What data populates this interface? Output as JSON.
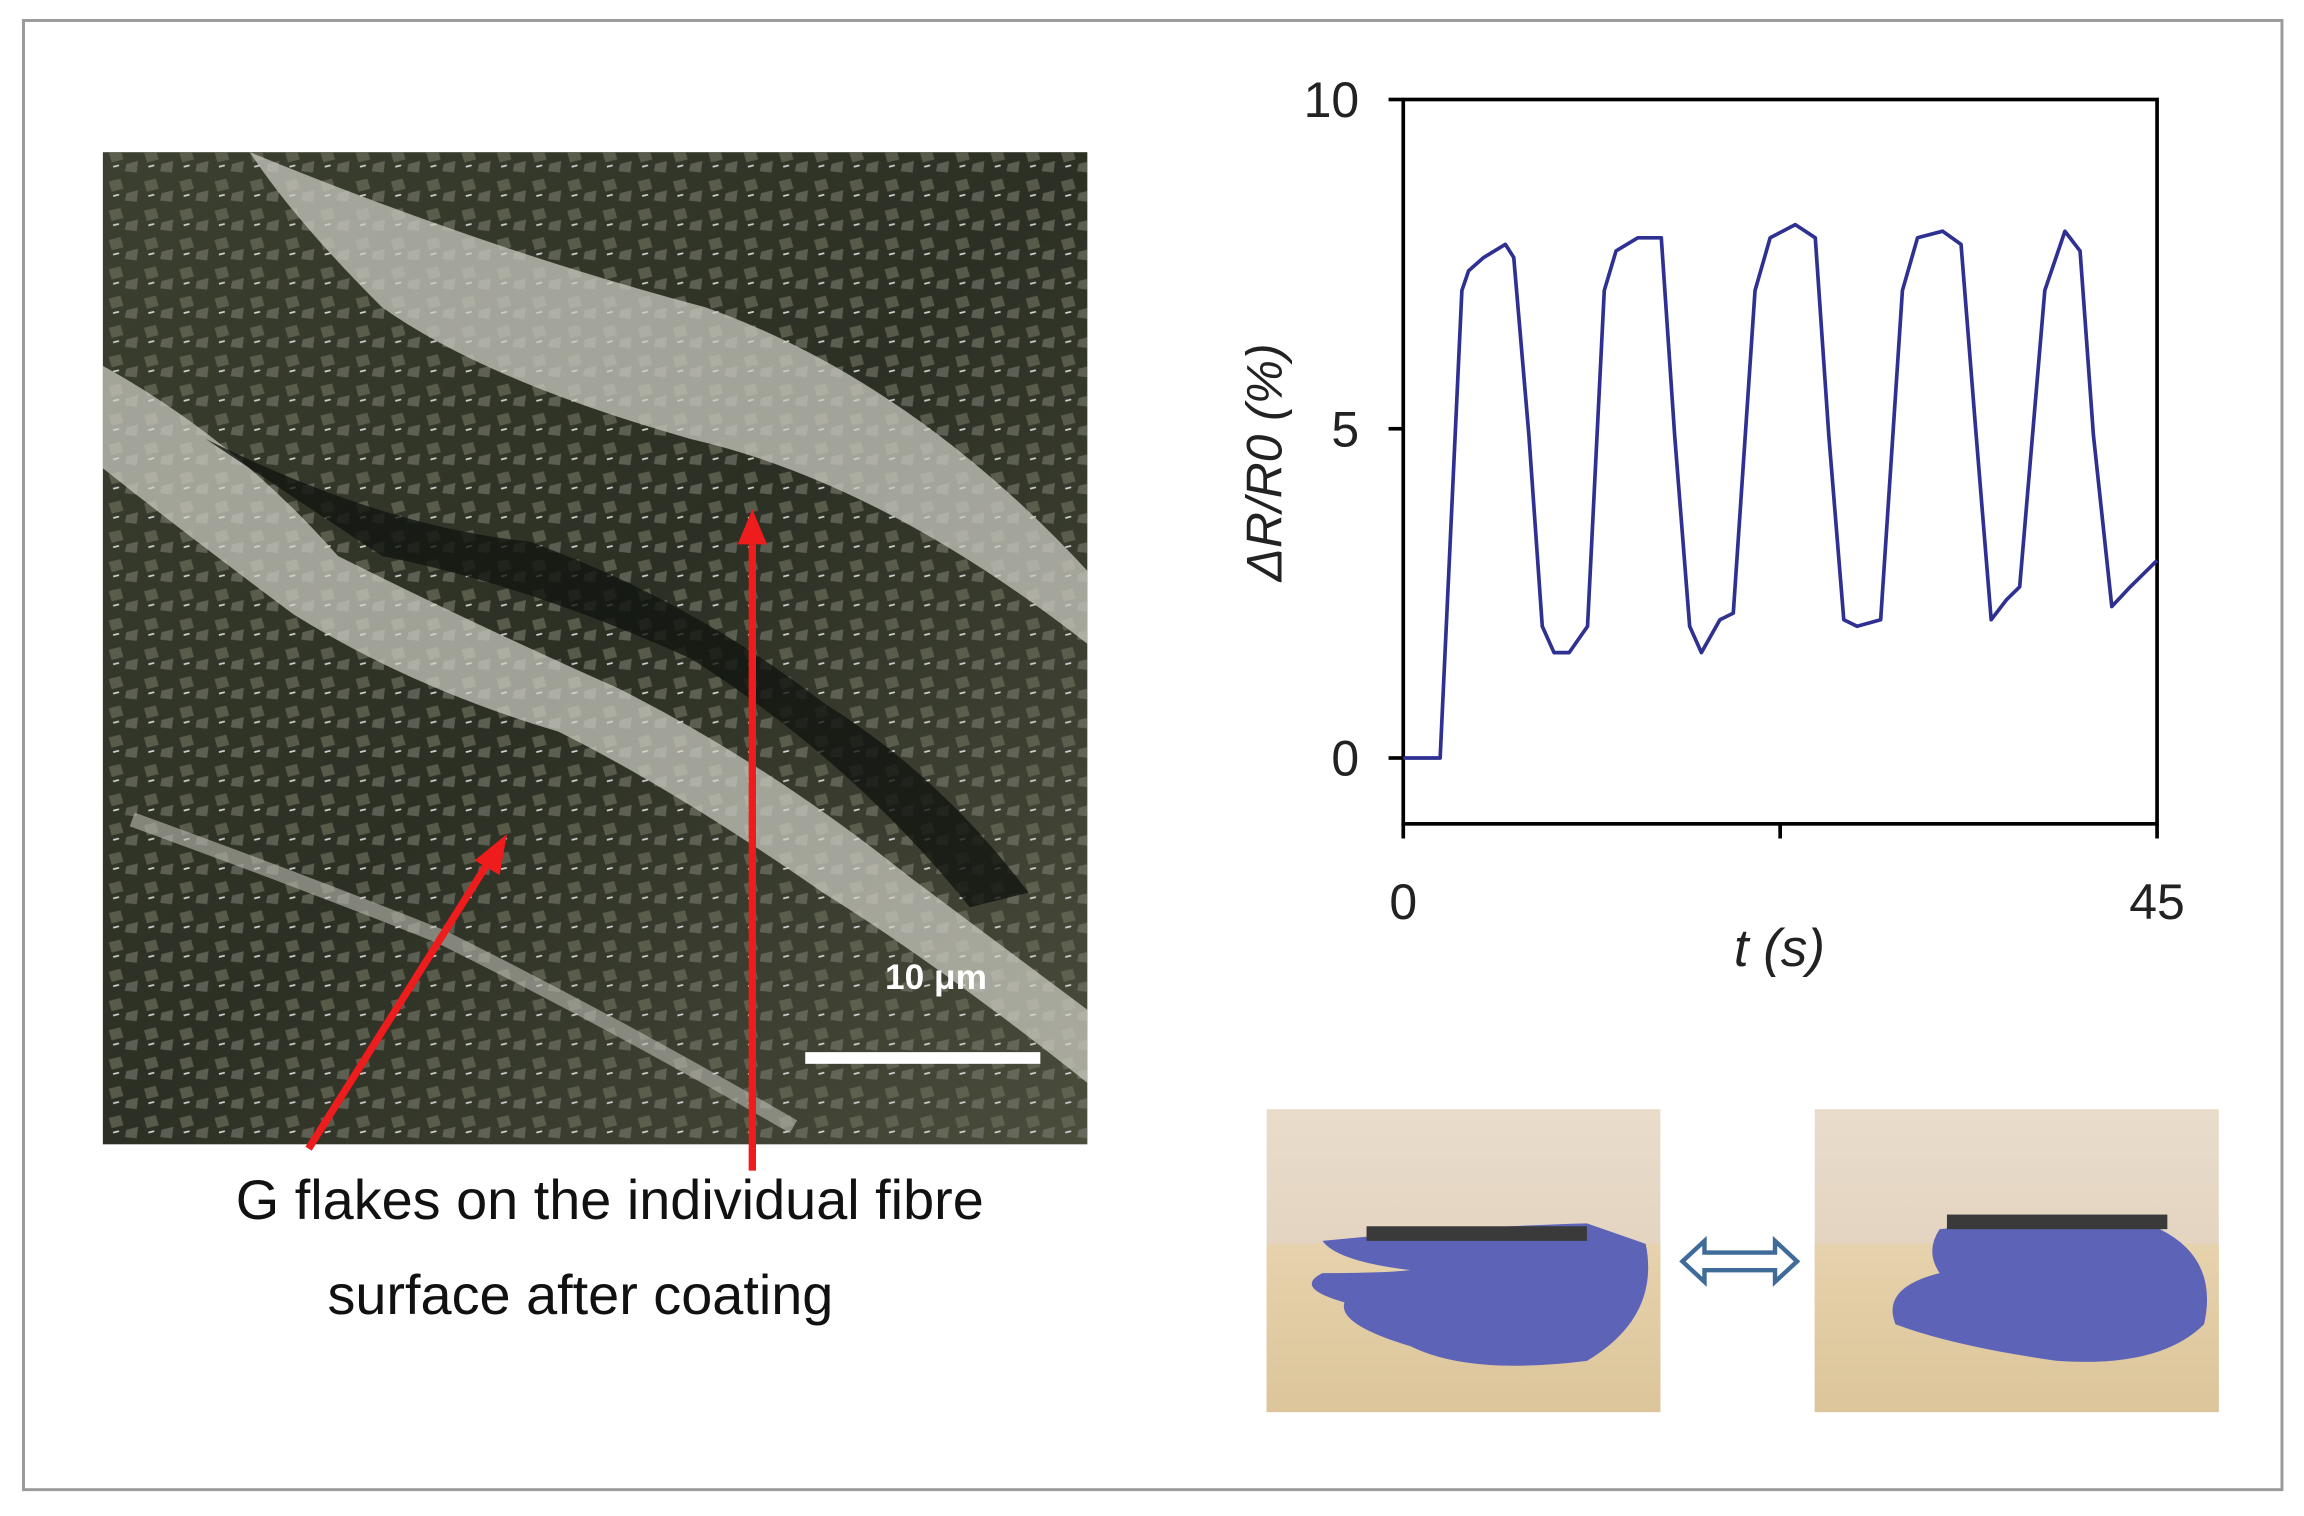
{
  "chart_data": {
    "type": "line",
    "xlabel": "t (s)",
    "ylabel": "ΔR/R0 (%)",
    "x": [
      0,
      2.2,
      3.5,
      3.9,
      4.8,
      6.1,
      6.6,
      7.5,
      8.3,
      9.0,
      9.9,
      11,
      12,
      12.7,
      14,
      15.4,
      16.2,
      17.1,
      17.8,
      18.9,
      19.7,
      21,
      21.9,
      23.4,
      24.6,
      25.4,
      26.3,
      27.1,
      28.5,
      29.8,
      30.7,
      32.2,
      33.3,
      34.2,
      35.1,
      36,
      36.8,
      38.3,
      39.5,
      40.4,
      41.2,
      42.3,
      43.4,
      45
    ],
    "values": [
      0,
      0,
      7.1,
      7.4,
      7.6,
      7.8,
      7.6,
      4.9,
      2.0,
      1.6,
      1.6,
      2.0,
      7.1,
      7.7,
      7.9,
      7.9,
      4.9,
      2.0,
      1.6,
      2.1,
      2.2,
      7.1,
      7.9,
      8.1,
      7.9,
      4.9,
      2.1,
      2.0,
      2.1,
      7.1,
      7.9,
      8.0,
      7.8,
      4.9,
      2.1,
      2.4,
      2.6,
      7.1,
      8.0,
      7.7,
      4.9,
      2.3,
      2.6,
      3.0
    ],
    "color": "#2e3192",
    "xlim": [
      0,
      45
    ],
    "xticks": [
      0,
      45
    ],
    "xminor_ticks": [
      22.5
    ],
    "ylim": [
      -1,
      10
    ],
    "yticks": [
      0,
      5,
      10
    ]
  },
  "annotation": [
    "G flakes on the individual fibre",
    "surface after coating"
  ],
  "scale_bar": "10 μm"
}
